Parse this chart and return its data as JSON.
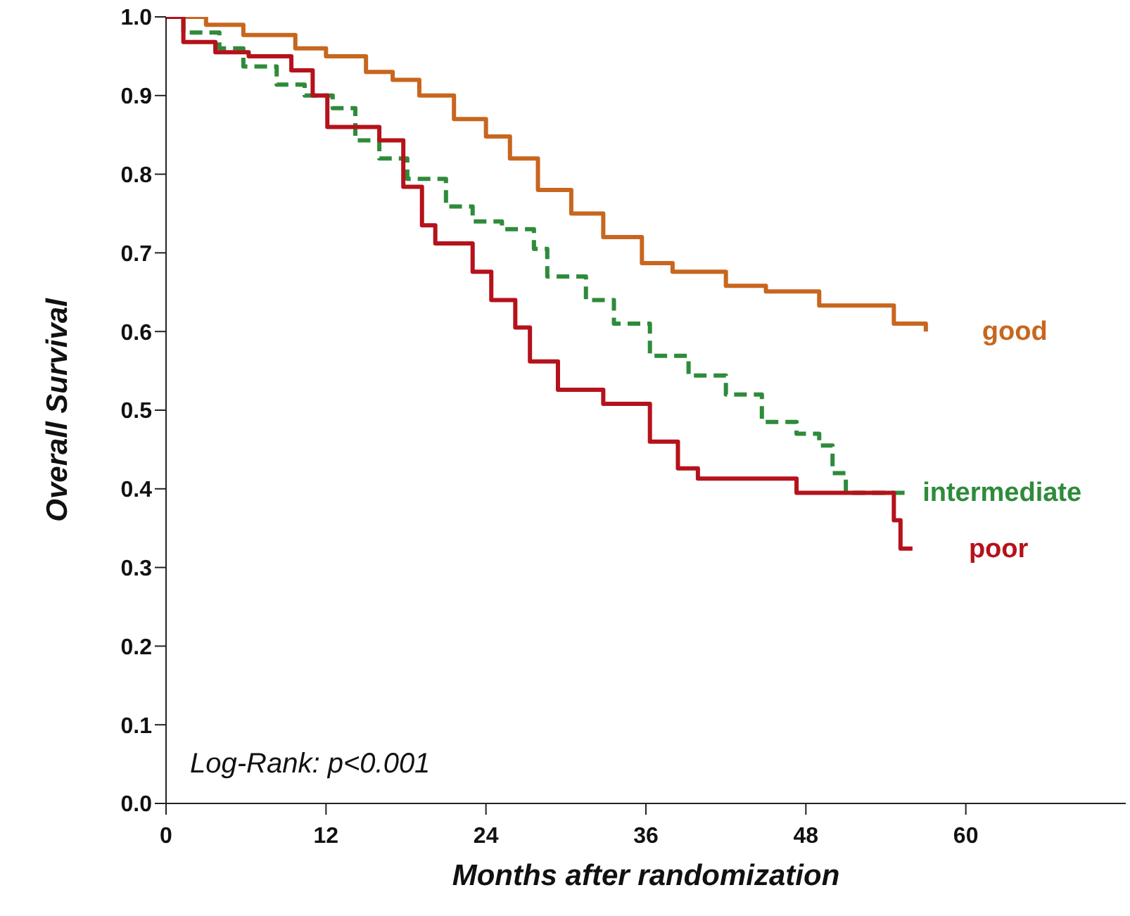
{
  "chart_data": {
    "type": "step",
    "xlabel": "Months after randomization",
    "ylabel": "Overall Survival",
    "xlim": [
      0,
      72
    ],
    "xticks": [
      0,
      12,
      24,
      36,
      48,
      60
    ],
    "ylim": [
      0,
      1
    ],
    "yticks": [
      {
        "value": 0,
        "label": "0.0"
      },
      {
        "value": 0.1,
        "label": "0.1"
      },
      {
        "value": 0.2,
        "label": "0.2"
      },
      {
        "value": 0.3,
        "label": "0.3"
      },
      {
        "value": 0.4,
        "label": "0.4"
      },
      {
        "value": 0.5,
        "label": "0.5"
      },
      {
        "value": 0.6,
        "label": "0.6"
      },
      {
        "value": 0.7,
        "label": "0.7"
      },
      {
        "value": 0.8,
        "label": "0.8"
      },
      {
        "value": 0.9,
        "label": "0.9"
      },
      {
        "value": 1,
        "label": "1.0"
      }
    ],
    "annotations": [
      "Log-Rank: p<0.001"
    ],
    "series": [
      {
        "name": "good",
        "color": "#c8661e",
        "line_style": "solid",
        "x": [
          0,
          3,
          5.8,
          9.7,
          12,
          15,
          17,
          19,
          21.6,
          24,
          25.8,
          27.9,
          30.4,
          32.8,
          35.7,
          38,
          40.5,
          42,
          45,
          47.6,
          49,
          53.6,
          54.6,
          57
        ],
        "values": [
          1,
          0.99,
          0.977,
          0.96,
          0.95,
          0.93,
          0.92,
          0.9,
          0.87,
          0.848,
          0.82,
          0.78,
          0.75,
          0.72,
          0.687,
          0.676,
          0.676,
          0.658,
          0.651,
          0.651,
          0.633,
          0.633,
          0.61,
          0.6
        ]
      },
      {
        "name": "intermediate",
        "color": "#2e8b3a",
        "line_style": "dashed",
        "x": [
          0,
          1.3,
          4,
          5.8,
          8.3,
          10.4,
          12.5,
          14.2,
          16,
          18.1,
          21,
          23,
          25.2,
          27.6,
          28.6,
          31.5,
          33.6,
          36.3,
          39.2,
          42,
          44.7,
          47.3,
          49,
          50,
          51,
          55.7
        ],
        "values": [
          1,
          0.98,
          0.96,
          0.937,
          0.914,
          0.9,
          0.884,
          0.843,
          0.82,
          0.794,
          0.759,
          0.74,
          0.73,
          0.705,
          0.67,
          0.64,
          0.61,
          0.569,
          0.544,
          0.52,
          0.485,
          0.47,
          0.455,
          0.42,
          0.395,
          0.395
        ]
      },
      {
        "name": "poor",
        "color": "#b5121b",
        "line_style": "solid",
        "x": [
          0,
          1.3,
          3.7,
          6.2,
          9.4,
          11,
          12.1,
          16,
          17.8,
          19.2,
          20.2,
          23,
          24.4,
          26.2,
          27.3,
          29.4,
          32.8,
          36.3,
          38.4,
          39.9,
          47.3,
          54.6,
          55.1,
          56
        ],
        "values": [
          1,
          0.968,
          0.955,
          0.95,
          0.932,
          0.9,
          0.86,
          0.843,
          0.784,
          0.735,
          0.712,
          0.676,
          0.64,
          0.605,
          0.562,
          0.526,
          0.508,
          0.46,
          0.426,
          0.413,
          0.395,
          0.36,
          0.324,
          0.324
        ]
      }
    ]
  }
}
